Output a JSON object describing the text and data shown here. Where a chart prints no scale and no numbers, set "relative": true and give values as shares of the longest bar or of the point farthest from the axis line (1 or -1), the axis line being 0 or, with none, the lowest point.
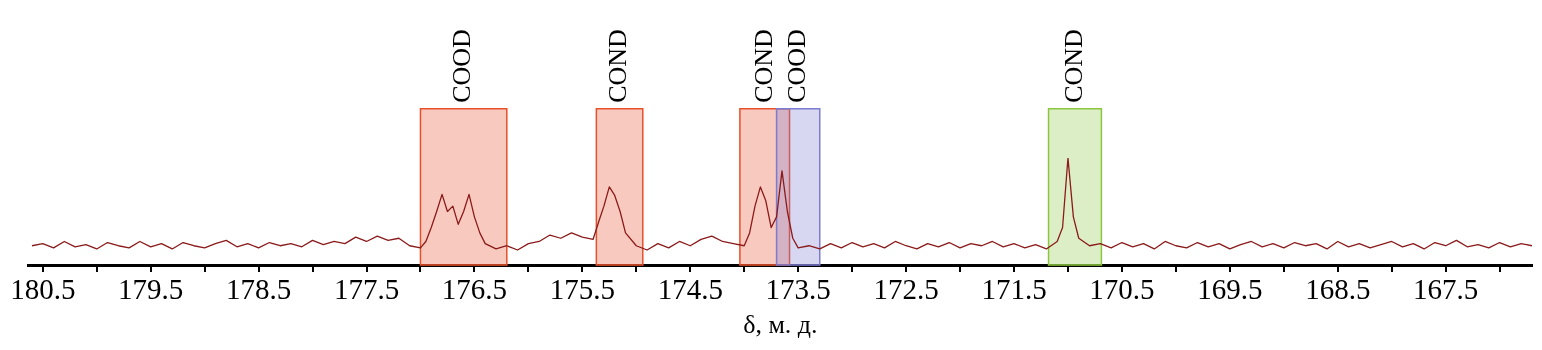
{
  "chart_data": {
    "type": "line",
    "xlabel": "δ, м. д.",
    "relative": true,
    "grid": false,
    "legend": false,
    "marker": "none",
    "line_style": "solid",
    "xlim": [
      180.63,
      166.7
    ],
    "xticks": [
      180.5,
      {
        "value": 180,
        "label": null
      },
      179.5,
      {
        "value": 179,
        "label": null
      },
      178.5,
      {
        "value": 178,
        "label": null
      },
      177.5,
      {
        "value": 177,
        "label": null
      },
      176.5,
      {
        "value": 176,
        "label": null
      },
      175.5,
      {
        "value": 175,
        "label": null
      },
      174.5,
      {
        "value": 174,
        "label": null
      },
      173.5,
      {
        "value": 173,
        "label": null
      },
      172.5,
      {
        "value": 172,
        "label": null
      },
      171.5,
      {
        "value": 171,
        "label": null
      },
      170.5,
      {
        "value": 170,
        "label": null
      },
      169.5,
      {
        "value": 169,
        "label": null
      },
      168.5,
      {
        "value": 168,
        "label": null
      },
      167.5,
      {
        "value": 167,
        "label": null
      }
    ],
    "bands": [
      {
        "axis": "x",
        "from": 177.0,
        "to": 176.2,
        "label": "COOD",
        "color": "#e8502a"
      },
      {
        "axis": "x",
        "from": 175.37,
        "to": 174.94,
        "label": "COND",
        "color": "#e8502a"
      },
      {
        "axis": "x",
        "from": 174.04,
        "to": 173.58,
        "label": "COND",
        "color": "#e8502a"
      },
      {
        "axis": "x",
        "from": 173.7,
        "to": 173.3,
        "label": "COOD",
        "color": "#7b7bd0"
      },
      {
        "axis": "x",
        "from": 171.18,
        "to": 170.69,
        "label": "COND",
        "color": "#8cc63f"
      }
    ],
    "series": [
      {
        "color": "#8b1a1a",
        "x": [
          180.6,
          180.5,
          180.4,
          180.3,
          180.2,
          180.1,
          180.0,
          179.9,
          179.8,
          179.7,
          179.6,
          179.5,
          179.4,
          179.3,
          179.2,
          179.1,
          179.0,
          178.9,
          178.8,
          178.7,
          178.6,
          178.5,
          178.4,
          178.3,
          178.2,
          178.1,
          178.0,
          177.9,
          177.8,
          177.7,
          177.6,
          177.5,
          177.4,
          177.3,
          177.2,
          177.1,
          177.0,
          176.95,
          176.9,
          176.85,
          176.8,
          176.75,
          176.7,
          176.65,
          176.6,
          176.55,
          176.5,
          176.45,
          176.4,
          176.3,
          176.2,
          176.1,
          176.0,
          175.9,
          175.8,
          175.7,
          175.6,
          175.5,
          175.4,
          175.35,
          175.3,
          175.25,
          175.2,
          175.15,
          175.1,
          175.0,
          174.9,
          174.8,
          174.7,
          174.6,
          174.5,
          174.4,
          174.3,
          174.2,
          174.1,
          174.0,
          173.95,
          173.9,
          173.85,
          173.8,
          173.75,
          173.7,
          173.65,
          173.6,
          173.55,
          173.5,
          173.4,
          173.3,
          173.2,
          173.1,
          173.0,
          172.9,
          172.8,
          172.7,
          172.6,
          172.5,
          172.4,
          172.3,
          172.2,
          172.1,
          172.0,
          171.9,
          171.8,
          171.7,
          171.6,
          171.5,
          171.4,
          171.3,
          171.2,
          171.1,
          171.05,
          171.0,
          170.95,
          170.9,
          170.8,
          170.7,
          170.6,
          170.5,
          170.4,
          170.3,
          170.2,
          170.1,
          170.0,
          169.9,
          169.8,
          169.7,
          169.6,
          169.5,
          169.4,
          169.3,
          169.2,
          169.1,
          169.0,
          168.9,
          168.8,
          168.7,
          168.6,
          168.5,
          168.4,
          168.3,
          168.2,
          168.1,
          168.0,
          167.9,
          167.8,
          167.7,
          167.6,
          167.5,
          167.4,
          167.3,
          167.2,
          167.1,
          167.0,
          166.9,
          166.8,
          166.7
        ],
        "values": [
          0.18,
          0.2,
          0.16,
          0.22,
          0.17,
          0.19,
          0.15,
          0.21,
          0.18,
          0.16,
          0.22,
          0.17,
          0.2,
          0.15,
          0.21,
          0.18,
          0.16,
          0.2,
          0.23,
          0.17,
          0.2,
          0.16,
          0.21,
          0.18,
          0.2,
          0.17,
          0.23,
          0.19,
          0.22,
          0.2,
          0.26,
          0.22,
          0.27,
          0.23,
          0.25,
          0.18,
          0.16,
          0.22,
          0.35,
          0.5,
          0.66,
          0.5,
          0.55,
          0.38,
          0.5,
          0.66,
          0.45,
          0.3,
          0.2,
          0.15,
          0.18,
          0.14,
          0.2,
          0.22,
          0.28,
          0.25,
          0.3,
          0.26,
          0.24,
          0.4,
          0.55,
          0.73,
          0.65,
          0.5,
          0.3,
          0.18,
          0.14,
          0.2,
          0.16,
          0.22,
          0.18,
          0.24,
          0.27,
          0.22,
          0.2,
          0.18,
          0.3,
          0.55,
          0.73,
          0.6,
          0.35,
          0.45,
          0.88,
          0.5,
          0.25,
          0.16,
          0.18,
          0.15,
          0.2,
          0.16,
          0.21,
          0.17,
          0.2,
          0.16,
          0.22,
          0.18,
          0.15,
          0.2,
          0.17,
          0.21,
          0.16,
          0.2,
          0.18,
          0.22,
          0.17,
          0.2,
          0.16,
          0.19,
          0.15,
          0.22,
          0.35,
          1,
          0.45,
          0.25,
          0.18,
          0.2,
          0.16,
          0.21,
          0.17,
          0.2,
          0.15,
          0.22,
          0.18,
          0.16,
          0.21,
          0.17,
          0.2,
          0.15,
          0.19,
          0.22,
          0.17,
          0.2,
          0.16,
          0.21,
          0.18,
          0.2,
          0.15,
          0.22,
          0.17,
          0.2,
          0.16,
          0.19,
          0.22,
          0.17,
          0.2,
          0.15,
          0.21,
          0.18,
          0.23,
          0.17,
          0.19,
          0.16,
          0.21,
          0.17,
          0.2,
          0.18
        ]
      }
    ]
  }
}
